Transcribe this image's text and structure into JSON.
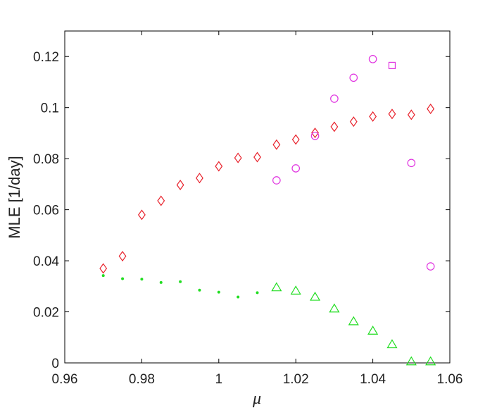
{
  "chart_data": {
    "type": "scatter",
    "xlabel": "μ",
    "ylabel": "MLE [1/day]",
    "xlim": [
      0.96,
      1.06
    ],
    "ylim": [
      0,
      0.13
    ],
    "x_ticks": [
      0.96,
      0.98,
      1,
      1.02,
      1.04,
      1.06
    ],
    "x_tick_labels": [
      "0.96",
      "0.98",
      "1",
      "1.02",
      "1.04",
      "1.06"
    ],
    "y_ticks": [
      0,
      0.02,
      0.04,
      0.06,
      0.08,
      0.1,
      0.12
    ],
    "y_tick_labels": [
      "0",
      "0.02",
      "0.04",
      "0.06",
      "0.08",
      "0.1",
      "0.12"
    ],
    "grid": false,
    "legend": "none",
    "series": [
      {
        "marker": "diamond",
        "color": "#e8212b",
        "points": [
          [
            0.97,
            0.037
          ],
          [
            0.975,
            0.0418
          ],
          [
            0.98,
            0.058
          ],
          [
            0.985,
            0.0635
          ],
          [
            0.99,
            0.0697
          ],
          [
            0.995,
            0.0724
          ],
          [
            1.0,
            0.077
          ],
          [
            1.005,
            0.0803
          ],
          [
            1.01,
            0.0806
          ],
          [
            1.015,
            0.0855
          ],
          [
            1.02,
            0.0875
          ],
          [
            1.025,
            0.0901
          ],
          [
            1.03,
            0.0925
          ],
          [
            1.035,
            0.0945
          ],
          [
            1.04,
            0.0965
          ],
          [
            1.045,
            0.0975
          ],
          [
            1.05,
            0.0972
          ],
          [
            1.055,
            0.0995
          ]
        ]
      },
      {
        "marker": "circle",
        "color": "#e033e0",
        "points": [
          [
            1.015,
            0.0715
          ],
          [
            1.02,
            0.0762
          ],
          [
            1.025,
            0.0889
          ],
          [
            1.03,
            0.1035
          ],
          [
            1.035,
            0.1117
          ],
          [
            1.04,
            0.119
          ],
          [
            1.05,
            0.0783
          ],
          [
            1.055,
            0.0378
          ]
        ]
      },
      {
        "marker": "square",
        "color": "#e033e0",
        "points": [
          [
            1.045,
            0.1165
          ]
        ]
      },
      {
        "marker": "triangle",
        "color": "#22dd22",
        "points": [
          [
            1.015,
            0.0295
          ],
          [
            1.02,
            0.0282
          ],
          [
            1.025,
            0.0258
          ],
          [
            1.03,
            0.0212
          ],
          [
            1.035,
            0.0162
          ],
          [
            1.04,
            0.0125
          ],
          [
            1.045,
            0.0072
          ],
          [
            1.05,
            0.0005
          ],
          [
            1.055,
            0.0005
          ]
        ]
      },
      {
        "marker": "dot",
        "color": "#22dd22",
        "points": [
          [
            0.97,
            0.0342
          ],
          [
            0.975,
            0.033
          ],
          [
            0.98,
            0.0328
          ],
          [
            0.985,
            0.0315
          ],
          [
            0.99,
            0.0318
          ],
          [
            0.995,
            0.0285
          ],
          [
            1.0,
            0.0277
          ],
          [
            1.005,
            0.0258
          ],
          [
            1.01,
            0.0275
          ]
        ]
      }
    ]
  }
}
